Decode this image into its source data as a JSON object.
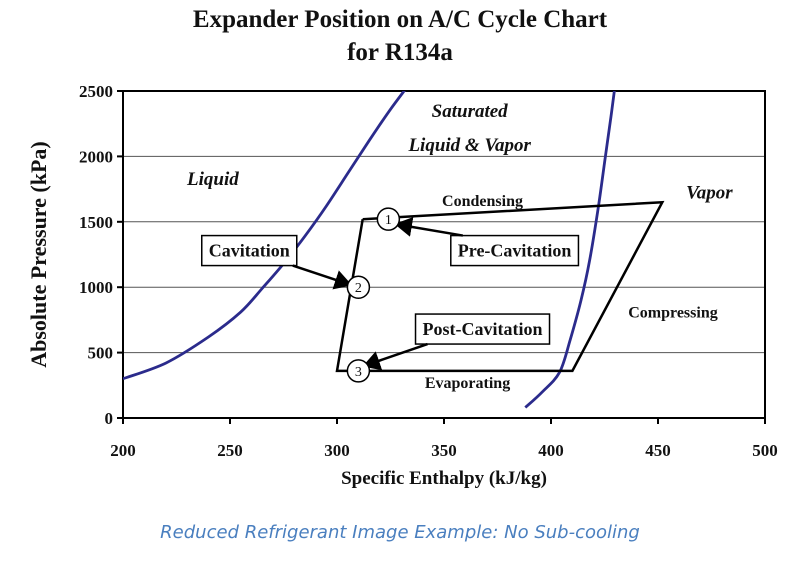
{
  "chart_data": {
    "type": "line",
    "title": [
      "Expander Position on A/C Cycle Chart",
      "for R134a"
    ],
    "xlabel": "Specific Enthalpy (kJ/kg)",
    "ylabel": "Absolute Pressure (kPa)",
    "xlim": [
      200,
      500
    ],
    "ylim": [
      0,
      2500
    ],
    "xticks": [
      200,
      250,
      300,
      350,
      400,
      450,
      500
    ],
    "yticks": [
      0,
      500,
      1000,
      1500,
      2000,
      2500
    ],
    "grid": "horizontal",
    "colors": {
      "saturation": "#2b2b8c",
      "cycle": "#000000",
      "grid": "#555555"
    },
    "series": [
      {
        "role": "saturated-liquid-line",
        "x": [
          200,
          220,
          240,
          255,
          265,
          275,
          285,
          295,
          305,
          315,
          325,
          335,
          342
        ],
        "y": [
          300,
          420,
          620,
          810,
          990,
          1180,
          1390,
          1620,
          1870,
          2120,
          2360,
          2580,
          2750
        ]
      },
      {
        "role": "saturated-vapor-line",
        "x": [
          388,
          396,
          404,
          409,
          414,
          418,
          422,
          425,
          428,
          430
        ],
        "y": [
          80,
          200,
          350,
          600,
          900,
          1200,
          1600,
          1950,
          2300,
          2550
        ]
      },
      {
        "role": "refrigeration-cycle",
        "x": [
          312,
          452,
          410,
          300,
          312
        ],
        "y": [
          1520,
          1650,
          360,
          360,
          1520
        ]
      }
    ],
    "points": [
      {
        "label": "1",
        "x": 324,
        "y": 1520
      },
      {
        "label": "2",
        "x": 310,
        "y": 1000
      },
      {
        "label": "3",
        "x": 310,
        "y": 360
      }
    ],
    "region_labels": [
      {
        "text": "Liquid",
        "x": 242,
        "y": 1780
      },
      {
        "text": "Saturated",
        "x": 362,
        "y": 2300
      },
      {
        "text": "Liquid & Vapor",
        "x": 362,
        "y": 2040
      },
      {
        "text": "Vapor",
        "x": 474,
        "y": 1680
      },
      {
        "text": "Condensing",
        "x": 368,
        "y": 1620
      },
      {
        "text": "Compressing",
        "x": 457,
        "y": 770
      },
      {
        "text": "Evaporating",
        "x": 361,
        "y": 230
      }
    ],
    "annotations": [
      {
        "text": "Cavitation",
        "box_x": 259,
        "box_y": 1280,
        "arrow_to_x": 306,
        "arrow_to_y": 1020
      },
      {
        "text": "Pre-Cavitation",
        "box_x": 383,
        "box_y": 1280,
        "arrow_to_x": 328,
        "arrow_to_y": 1480
      },
      {
        "text": "Post-Cavitation",
        "box_x": 368,
        "box_y": 680,
        "arrow_to_x": 313,
        "arrow_to_y": 400
      }
    ]
  },
  "caption": "Reduced Refrigerant Image Example:  No Sub-cooling"
}
